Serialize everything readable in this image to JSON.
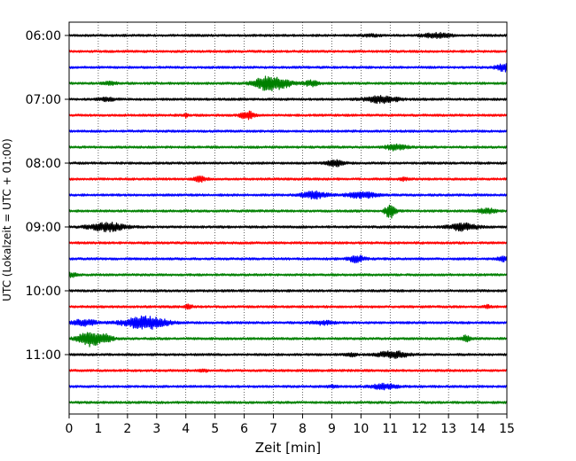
{
  "chart_data": {
    "type": "line",
    "title": "",
    "xlabel": "Zeit  [min]",
    "ylabel": "UTC (Lokalzeit = UTC + 01:00)",
    "xlim": [
      0,
      15
    ],
    "x_ticks": [
      0,
      1,
      2,
      3,
      4,
      5,
      6,
      7,
      8,
      9,
      10,
      11,
      12,
      13,
      14,
      15
    ],
    "x_tick_labels": [
      "0",
      "1",
      "2",
      "3",
      "4",
      "5",
      "6",
      "7",
      "8",
      "9",
      "10",
      "11",
      "12",
      "13",
      "14",
      "15"
    ],
    "y_tick_labels": [
      "06:00",
      "07:00",
      "08:00",
      "09:00",
      "10:00",
      "11:00"
    ],
    "grid": {
      "x": "dotted",
      "y": false
    },
    "row_colors": [
      "#000000",
      "#ff0000",
      "#0000ff",
      "#008000"
    ],
    "rows": [
      {
        "start": "06:00",
        "bursts": [
          [
            12.6,
            0.35,
            0.28
          ],
          [
            10.3,
            0.2,
            0.15
          ]
        ]
      },
      {
        "start": "06:15",
        "bursts": []
      },
      {
        "start": "06:30",
        "bursts": [
          [
            14.9,
            0.2,
            0.5
          ]
        ]
      },
      {
        "start": "06:45",
        "bursts": [
          [
            6.75,
            0.3,
            0.9
          ],
          [
            7.3,
            0.25,
            0.5
          ],
          [
            8.3,
            0.2,
            0.35
          ],
          [
            1.4,
            0.15,
            0.2
          ]
        ]
      },
      {
        "start": "07:00",
        "bursts": [
          [
            10.7,
            0.4,
            0.45
          ],
          [
            1.3,
            0.2,
            0.2
          ]
        ]
      },
      {
        "start": "07:15",
        "bursts": [
          [
            6.1,
            0.15,
            0.6
          ],
          [
            4.0,
            0.05,
            0.3
          ]
        ]
      },
      {
        "start": "07:30",
        "bursts": []
      },
      {
        "start": "07:45",
        "bursts": [
          [
            11.2,
            0.25,
            0.4
          ]
        ]
      },
      {
        "start": "08:00",
        "bursts": [
          [
            9.1,
            0.2,
            0.45
          ]
        ]
      },
      {
        "start": "08:15",
        "bursts": [
          [
            4.5,
            0.15,
            0.3
          ],
          [
            11.5,
            0.1,
            0.2
          ]
        ]
      },
      {
        "start": "08:30",
        "bursts": [
          [
            8.4,
            0.3,
            0.45
          ],
          [
            10.0,
            0.35,
            0.4
          ]
        ]
      },
      {
        "start": "08:45",
        "bursts": [
          [
            11.0,
            0.12,
            0.95
          ],
          [
            14.3,
            0.2,
            0.35
          ]
        ]
      },
      {
        "start": "09:00",
        "bursts": [
          [
            1.3,
            0.45,
            0.55
          ],
          [
            13.5,
            0.35,
            0.45
          ]
        ]
      },
      {
        "start": "09:15",
        "bursts": []
      },
      {
        "start": "09:30",
        "bursts": [
          [
            9.85,
            0.2,
            0.45
          ],
          [
            14.9,
            0.15,
            0.3
          ]
        ]
      },
      {
        "start": "09:45",
        "bursts": [
          [
            0.1,
            0.1,
            0.35
          ]
        ]
      },
      {
        "start": "10:00",
        "bursts": []
      },
      {
        "start": "10:15",
        "bursts": [
          [
            4.1,
            0.1,
            0.25
          ],
          [
            14.3,
            0.1,
            0.2
          ]
        ]
      },
      {
        "start": "10:30",
        "bursts": [
          [
            2.6,
            0.5,
            0.9
          ],
          [
            0.5,
            0.3,
            0.4
          ],
          [
            8.7,
            0.25,
            0.25
          ]
        ]
      },
      {
        "start": "10:45",
        "bursts": [
          [
            0.65,
            0.25,
            1.0
          ],
          [
            1.2,
            0.2,
            0.6
          ],
          [
            13.6,
            0.1,
            0.45
          ]
        ]
      },
      {
        "start": "11:00",
        "bursts": [
          [
            11.1,
            0.35,
            0.45
          ],
          [
            9.7,
            0.15,
            0.2
          ]
        ]
      },
      {
        "start": "11:15",
        "bursts": [
          [
            4.6,
            0.1,
            0.2
          ]
        ]
      },
      {
        "start": "11:30",
        "bursts": [
          [
            10.8,
            0.3,
            0.35
          ],
          [
            9.0,
            0.15,
            0.15
          ]
        ]
      },
      {
        "start": "11:45",
        "bursts": []
      }
    ]
  }
}
